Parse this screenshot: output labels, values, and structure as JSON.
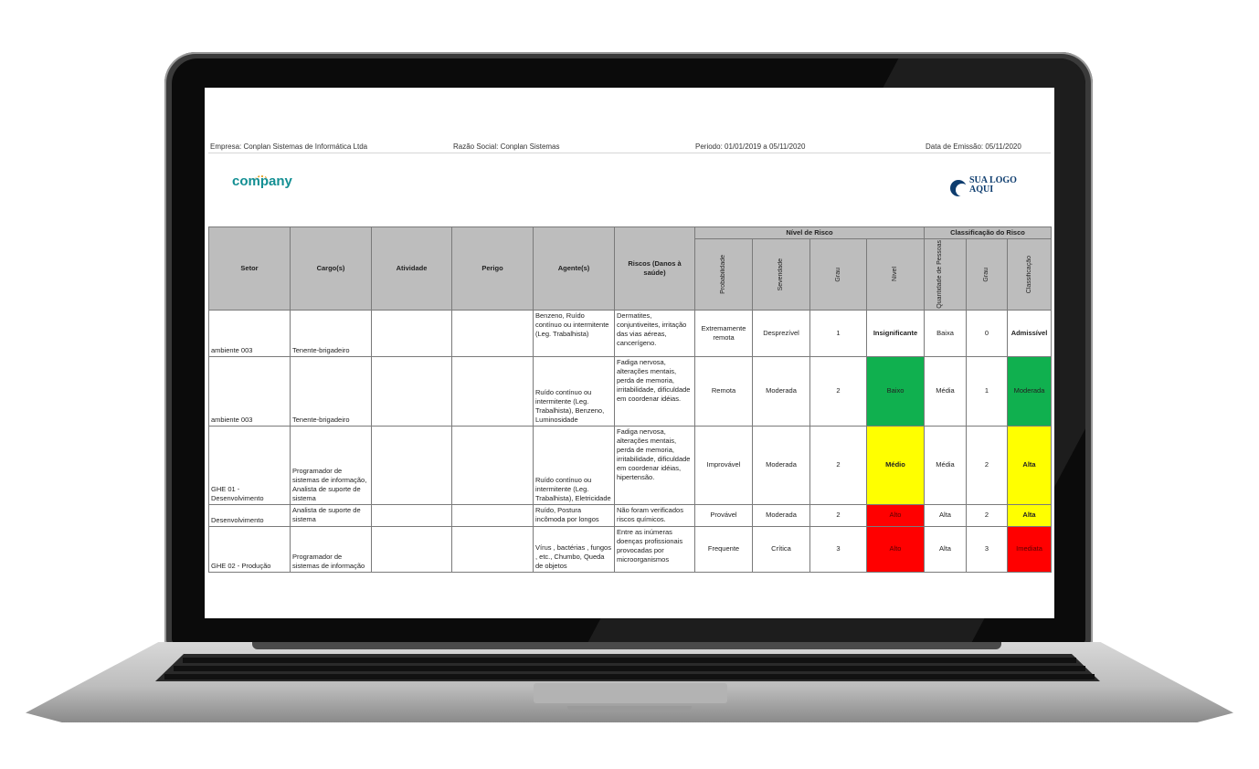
{
  "header": {
    "empresa": "Empresa: Conplan Sistemas de Informática Ltda",
    "razao_social": "Razão Social: Conplan Sistemas",
    "periodo": "Periodo: 01/01/2019 a 05/11/2020",
    "data_emissao": "Data de Emissão: 05/11/2020"
  },
  "logos": {
    "company": "company",
    "sua_logo_line1": "SUA LOGO",
    "sua_logo_line2": "AQUI"
  },
  "table": {
    "headers": {
      "setor": "Setor",
      "cargos": "Cargo(s)",
      "atividade": "Atividade",
      "perigo": "Perigo",
      "agentes": "Agente(s)",
      "riscos": "Riscos (Danos à saúde)",
      "nivel_group": "Nível de Risco",
      "classificacao_group": "Classificação do Risco",
      "probabilidade": "Probabilidade",
      "severidade": "Severidade",
      "grau": "Grau",
      "nivel": "Nível",
      "quantidade": "Quantidade de Pessoas",
      "grau2": "Grau",
      "classificacao": "Classificação"
    },
    "rows": [
      {
        "setor": "ambiente 003",
        "cargo": "Tenente-brigadeiro",
        "atividade": "",
        "perigo": "",
        "agentes": "Benzeno, Ruído contínuo ou intermitente (Leg. Trabalhista)",
        "riscos": "Dermatites, conjuntiveites, irritação das vias aéreas, cancerígeno.",
        "probabilidade": "Extremamente remota",
        "severidade": "Desprezível",
        "grau": "1",
        "nivel": "Insignificante",
        "quantidade": "Baixa",
        "grau2": "0",
        "classificacao": "Admissível"
      },
      {
        "setor": "ambiente 003",
        "cargo": "Tenente-brigadeiro",
        "atividade": "",
        "perigo": "",
        "agentes": "Ruído contínuo ou intermitente (Leg. Trabalhista), Benzeno, Luminosidade",
        "riscos": "Fadiga nervosa, alterações mentais, perda de memoria, irritabilidade, dificuldade em coordenar idéias.",
        "probabilidade": "Remota",
        "severidade": "Moderada",
        "grau": "2",
        "nivel": "Baixo",
        "quantidade": "Média",
        "grau2": "1",
        "classificacao": "Moderada"
      },
      {
        "setor": "GHE 01 - Desenvolvimento",
        "cargo": "Programador de sistemas de informação, Analista de suporte de sistema",
        "atividade": "",
        "perigo": "",
        "agentes": "Ruído contínuo ou intermitente (Leg. Trabalhista), Eletricidade",
        "riscos": "Fadiga nervosa, alterações mentais, perda de memoria, irritabilidade, dificuldade em coordenar idéias, hipertensão.",
        "probabilidade": "Improvável",
        "severidade": "Moderada",
        "grau": "2",
        "nivel": "Médio",
        "quantidade": "Média",
        "grau2": "2",
        "classificacao": "Alta"
      },
      {
        "setor": "Desenvolvimento",
        "cargo": "Analista de suporte de sistema",
        "atividade": "",
        "perigo": "",
        "agentes": "Ruído, Postura incômoda por longos",
        "riscos": "Não foram verificados riscos químicos.",
        "probabilidade": "Provável",
        "severidade": "Moderada",
        "grau": "2",
        "nivel": "Alto",
        "quantidade": "Alta",
        "grau2": "2",
        "classificacao": "Alta"
      },
      {
        "setor": "GHE 02 - Produção",
        "cargo": "Programador de sistemas de informação",
        "atividade": "",
        "perigo": "",
        "agentes": "Vírus , bactérias , fungos , etc., Chumbo, Queda de objetos",
        "riscos": "Entre as inúmeras doenças profissionais provocadas por microorganismos",
        "probabilidade": "Frequente",
        "severidade": "Crítica",
        "grau": "3",
        "nivel": "Alto",
        "quantidade": "Alta",
        "grau2": "3",
        "classificacao": "Imediata"
      }
    ]
  },
  "colors": {
    "header_gray": "#bdbdbd",
    "green": "#10b04f",
    "yellow": "#ffff00",
    "red": "#ff0000",
    "company_teal": "#138f93",
    "logo_blue": "#0d3c6e"
  }
}
